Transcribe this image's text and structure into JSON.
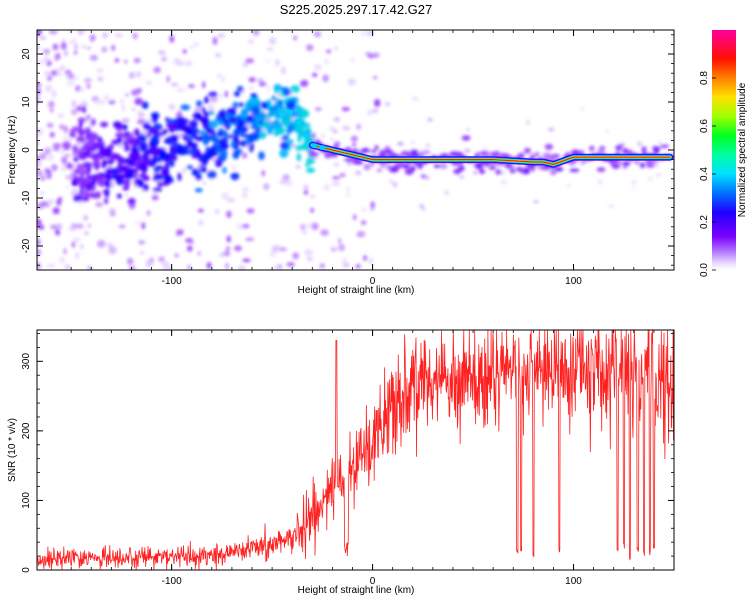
{
  "title": "S225.2025.297.17.42.G27",
  "chart_data": [
    {
      "type": "heatmap",
      "name": "spectrogram",
      "xlabel": "Height of straight line (km)",
      "ylabel": "Frequency (Hz)",
      "xlim": [
        -167,
        150
      ],
      "ylim": [
        -25,
        25
      ],
      "xticks": [
        -100,
        0,
        100
      ],
      "yticks": [
        -20,
        -10,
        0,
        10,
        20
      ],
      "tick_labels_x": [
        "-100",
        "0",
        "100"
      ],
      "tick_labels_y": [
        "-20",
        "-10",
        "0",
        "10",
        "20"
      ],
      "colorbar": {
        "label": "Normalized spectral amplitude",
        "range": [
          0,
          1
        ],
        "ticks": [
          0.0,
          0.2,
          0.4,
          0.6,
          0.8
        ],
        "tick_labels": [
          "0.0",
          "0.2",
          "0.4",
          "0.6",
          "0.8"
        ],
        "colors": [
          "#ffffff",
          "#e0c8ff",
          "#9b40ff",
          "#5a00ff",
          "#0000ff",
          "#00b4ff",
          "#00ffb4",
          "#00ff00",
          "#b4ff00",
          "#ffd200",
          "#ff5000",
          "#ff0000",
          "#ff00a0"
        ]
      },
      "ridge": {
        "x": [
          -145,
          -130,
          -110,
          -90,
          -70,
          -55,
          -40,
          -30,
          -20,
          -10,
          0,
          10,
          20,
          40,
          60,
          80,
          85,
          90,
          100,
          120,
          148
        ],
        "y": [
          -2,
          -3,
          -1,
          1,
          4,
          6,
          8,
          1,
          0,
          -1,
          -2,
          -2,
          -2,
          -2,
          -2,
          -2.5,
          -2.5,
          -3,
          -1.5,
          -1.5,
          -1.5
        ],
        "amplitude": [
          0.25,
          0.3,
          0.4,
          0.45,
          0.5,
          0.55,
          0.6,
          0.75,
          0.8,
          0.85,
          0.9,
          0.95,
          0.97,
          1.0,
          1.0,
          0.95,
          0.9,
          0.9,
          0.95,
          1.0,
          1.0
        ]
      }
    },
    {
      "type": "line",
      "name": "snr",
      "xlabel": "Height of straight line (km)",
      "ylabel": "SNR (10 * v/v)",
      "xlim": [
        -167,
        150
      ],
      "ylim": [
        0,
        345
      ],
      "xticks": [
        -100,
        0,
        100
      ],
      "yticks": [
        0,
        100,
        200,
        300
      ],
      "tick_labels_x": [
        "-100",
        "0",
        "100"
      ],
      "tick_labels_y": [
        "0",
        "100",
        "200",
        "300"
      ],
      "color": "#ff2020",
      "trend": {
        "x": [
          -167,
          -120,
          -80,
          -50,
          -40,
          -30,
          -20,
          -10,
          0,
          10,
          20,
          30,
          50,
          70,
          100,
          130,
          145,
          150
        ],
        "y": [
          15,
          18,
          22,
          35,
          50,
          80,
          110,
          150,
          185,
          230,
          260,
          270,
          280,
          290,
          285,
          290,
          280,
          260
        ]
      },
      "dropouts": [
        {
          "x": 72,
          "y": 20
        },
        {
          "x": 74,
          "y": 25
        },
        {
          "x": 80,
          "y": 15
        },
        {
          "x": 93,
          "y": 25
        },
        {
          "x": 122,
          "y": 20
        },
        {
          "x": 125,
          "y": 30
        },
        {
          "x": 128,
          "y": 15
        },
        {
          "x": 132,
          "y": 25
        },
        {
          "x": 135,
          "y": 20
        },
        {
          "x": 138,
          "y": 20
        },
        {
          "x": 140,
          "y": 30
        }
      ],
      "spike": {
        "x": -18,
        "y": 330
      }
    }
  ]
}
